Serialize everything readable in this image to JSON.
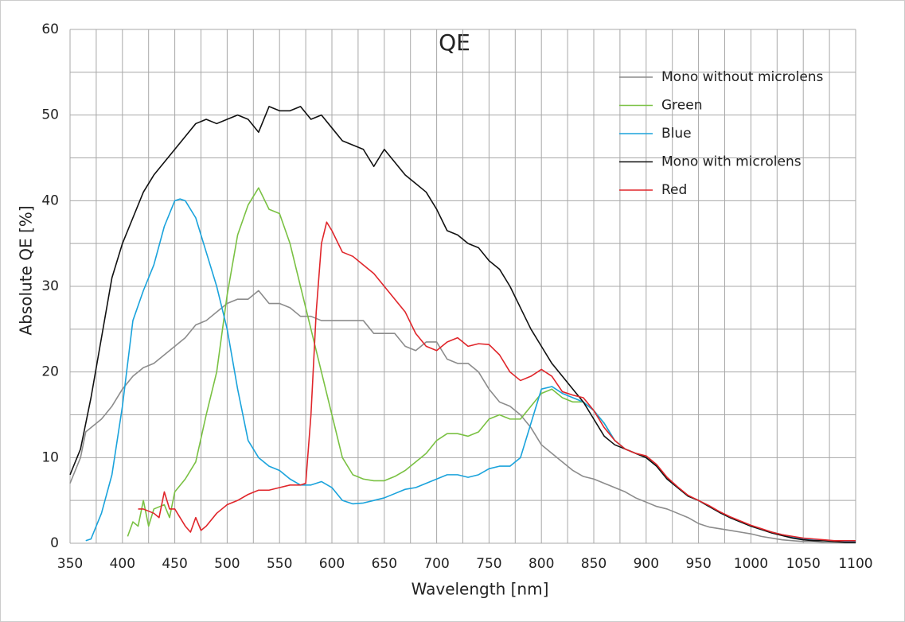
{
  "chart_data": {
    "type": "line",
    "title": "QE",
    "xlabel": "Wavelength [nm]",
    "ylabel": "Absolute QE [%]",
    "xlim": [
      350,
      1100
    ],
    "ylim": [
      0,
      60
    ],
    "xticks": [
      350,
      400,
      450,
      500,
      550,
      600,
      650,
      700,
      750,
      800,
      850,
      900,
      950,
      1000,
      1050,
      1100
    ],
    "yticks": [
      0,
      10,
      20,
      30,
      40,
      50,
      60
    ],
    "xminorticks": [
      375,
      425,
      475,
      525,
      575,
      625,
      675,
      725,
      775,
      825,
      875,
      925,
      975,
      1025,
      1075
    ],
    "yminorticks": [
      5,
      15,
      25,
      35,
      45,
      55
    ],
    "grid": true,
    "legend": "upper right",
    "series": [
      {
        "name": "Mono without microlens",
        "color": "#8c8c8c",
        "x": [
          350,
          360,
          365,
          370,
          380,
          390,
          400,
          410,
          420,
          430,
          440,
          450,
          460,
          470,
          480,
          490,
          500,
          510,
          520,
          530,
          540,
          550,
          560,
          570,
          580,
          590,
          600,
          610,
          620,
          630,
          640,
          650,
          660,
          670,
          680,
          690,
          700,
          710,
          720,
          730,
          740,
          750,
          760,
          770,
          780,
          790,
          800,
          810,
          820,
          830,
          840,
          850,
          860,
          870,
          880,
          890,
          900,
          910,
          920,
          930,
          940,
          950,
          960,
          970,
          980,
          990,
          1000,
          1010,
          1020,
          1030,
          1040,
          1050,
          1060,
          1070,
          1080,
          1090,
          1100
        ],
        "values": [
          7,
          10,
          13,
          13.5,
          14.5,
          16,
          18,
          19.5,
          20.5,
          21,
          22,
          23,
          24,
          25.5,
          26,
          27,
          28,
          28.5,
          28.5,
          29.5,
          28,
          28,
          27.5,
          26.5,
          26.5,
          26,
          26,
          26,
          26,
          26,
          24.5,
          24.5,
          24.5,
          23,
          22.5,
          23.5,
          23.5,
          21.5,
          21,
          21,
          20,
          18,
          16.5,
          16,
          15,
          13.5,
          11.5,
          10.5,
          9.5,
          8.5,
          7.8,
          7.5,
          7,
          6.5,
          6,
          5.3,
          4.8,
          4.3,
          4,
          3.5,
          3,
          2.3,
          1.9,
          1.7,
          1.5,
          1.3,
          1.1,
          0.8,
          0.6,
          0.4,
          0.3,
          0.2,
          0.2,
          0.1,
          0.1,
          0.1,
          0.1
        ]
      },
      {
        "name": "Green",
        "color": "#7ac143",
        "x": [
          405,
          410,
          415,
          420,
          425,
          430,
          440,
          445,
          450,
          460,
          470,
          480,
          490,
          500,
          510,
          520,
          530,
          540,
          550,
          560,
          570,
          580,
          590,
          600,
          610,
          620,
          630,
          640,
          650,
          660,
          670,
          680,
          690,
          700,
          710,
          720,
          730,
          740,
          750,
          760,
          770,
          780,
          790,
          800,
          810,
          820,
          830,
          840,
          850,
          860,
          870,
          880,
          890,
          900,
          910,
          920,
          930,
          940,
          950,
          960,
          970,
          980,
          990,
          1000,
          1010,
          1020,
          1030,
          1040,
          1050,
          1060,
          1070,
          1080,
          1090,
          1100
        ],
        "values": [
          0.8,
          2.5,
          2,
          5,
          2,
          4,
          4.5,
          3,
          6,
          7.5,
          9.5,
          15,
          20,
          29,
          36,
          39.5,
          41.5,
          39,
          38.5,
          35,
          30,
          25,
          20,
          15,
          10,
          8,
          7.5,
          7.3,
          7.3,
          7.8,
          8.5,
          9.5,
          10.5,
          12,
          12.8,
          12.8,
          12.5,
          13,
          14.5,
          15,
          14.5,
          14.5,
          16,
          17.5,
          18,
          17,
          16.5,
          16.5,
          15.5,
          14,
          12,
          11,
          10.5,
          10,
          9,
          7.5,
          6.5,
          5.5,
          5,
          4.3,
          3.6,
          3,
          2.5,
          2,
          1.6,
          1.3,
          1,
          0.7,
          0.5,
          0.4,
          0.3,
          0.3,
          0.2,
          0.2
        ]
      },
      {
        "name": "Blue",
        "color": "#1aa3dc",
        "x": [
          365,
          370,
          375,
          380,
          390,
          400,
          410,
          420,
          430,
          440,
          450,
          455,
          460,
          470,
          480,
          490,
          500,
          510,
          520,
          530,
          540,
          550,
          560,
          570,
          580,
          590,
          600,
          610,
          620,
          630,
          640,
          650,
          660,
          670,
          680,
          690,
          700,
          710,
          720,
          730,
          740,
          750,
          760,
          770,
          780,
          790,
          800,
          810,
          820,
          830,
          840,
          850,
          860,
          870,
          880,
          890,
          900,
          910,
          920,
          930,
          940,
          950,
          960,
          970,
          980,
          990,
          1000,
          1010,
          1020,
          1030,
          1040,
          1050,
          1060,
          1070,
          1080,
          1090,
          1100
        ],
        "values": [
          0.3,
          0.5,
          2,
          3.5,
          8,
          16,
          26,
          29.5,
          32.5,
          37,
          40,
          40.2,
          40,
          38,
          34,
          30,
          25,
          18,
          12,
          10,
          9,
          8.5,
          7.5,
          6.8,
          6.8,
          7.2,
          6.5,
          5,
          4.6,
          4.7,
          5,
          5.3,
          5.8,
          6.3,
          6.5,
          7,
          7.5,
          8,
          8,
          7.7,
          8,
          8.7,
          9,
          9,
          10,
          14,
          18,
          18.3,
          17.5,
          17,
          16.5,
          15.5,
          14,
          12,
          11,
          10.5,
          10,
          9,
          7.5,
          6.5,
          5.5,
          5,
          4.3,
          3.6,
          3,
          2.5,
          2,
          1.6,
          1.3,
          1,
          0.7,
          0.5,
          0.4,
          0.3,
          0.3,
          0.2,
          0.2
        ]
      },
      {
        "name": "Mono with microlens",
        "color": "#111111",
        "x": [
          350,
          360,
          370,
          380,
          390,
          400,
          410,
          420,
          430,
          440,
          450,
          460,
          470,
          480,
          490,
          500,
          510,
          520,
          530,
          540,
          550,
          560,
          570,
          580,
          590,
          600,
          610,
          620,
          630,
          640,
          650,
          660,
          670,
          680,
          690,
          700,
          710,
          720,
          730,
          740,
          750,
          760,
          770,
          780,
          790,
          800,
          810,
          820,
          830,
          840,
          850,
          860,
          870,
          880,
          890,
          900,
          910,
          920,
          930,
          940,
          950,
          960,
          970,
          980,
          990,
          1000,
          1010,
          1020,
          1030,
          1040,
          1050,
          1060,
          1070,
          1080,
          1090,
          1100
        ],
        "values": [
          8,
          11,
          17,
          24,
          31,
          35,
          38,
          41,
          43,
          44.5,
          46,
          47.5,
          49,
          49.5,
          49,
          49.5,
          50,
          49.5,
          48,
          51,
          50.5,
          50.5,
          51,
          49.5,
          50,
          48.5,
          47,
          46.5,
          46,
          44,
          46,
          44.5,
          43,
          42,
          41,
          39,
          36.5,
          36,
          35,
          34.5,
          33,
          32,
          30,
          27.5,
          25,
          23,
          21,
          19.5,
          18,
          16.5,
          14.5,
          12.5,
          11.5,
          11,
          10.5,
          10,
          9,
          7.5,
          6.5,
          5.5,
          5,
          4.3,
          3.6,
          3,
          2.5,
          2,
          1.6,
          1.2,
          0.9,
          0.6,
          0.4,
          0.3,
          0.3,
          0.2,
          0.1,
          0.1
        ]
      },
      {
        "name": "Red",
        "color": "#e0262b",
        "x": [
          415,
          420,
          430,
          435,
          440,
          445,
          450,
          455,
          460,
          465,
          470,
          475,
          480,
          490,
          500,
          510,
          520,
          530,
          540,
          550,
          560,
          570,
          575,
          580,
          585,
          590,
          595,
          600,
          610,
          620,
          630,
          640,
          650,
          660,
          670,
          680,
          690,
          700,
          710,
          720,
          730,
          740,
          750,
          760,
          770,
          780,
          790,
          800,
          810,
          820,
          830,
          840,
          850,
          860,
          870,
          880,
          890,
          900,
          910,
          920,
          930,
          940,
          950,
          960,
          970,
          980,
          990,
          1000,
          1010,
          1020,
          1030,
          1040,
          1050,
          1060,
          1070,
          1080,
          1090,
          1100
        ],
        "values": [
          4,
          4,
          3.5,
          3,
          6,
          4,
          4,
          3,
          2,
          1.3,
          3,
          1.5,
          2,
          3.5,
          4.5,
          5,
          5.7,
          6.2,
          6.2,
          6.5,
          6.8,
          6.8,
          7,
          15,
          27,
          35,
          37.5,
          36.5,
          34,
          33.5,
          32.5,
          31.5,
          30,
          28.5,
          27,
          24.5,
          23,
          22.5,
          23.5,
          24,
          23,
          23.3,
          23.2,
          22,
          20,
          19,
          19.5,
          20.3,
          19.5,
          17.7,
          17.3,
          17,
          15.5,
          13.5,
          12,
          11,
          10.5,
          10.2,
          9.2,
          7.7,
          6.6,
          5.6,
          5,
          4.4,
          3.7,
          3.1,
          2.6,
          2.1,
          1.7,
          1.3,
          1,
          0.8,
          0.6,
          0.5,
          0.4,
          0.3,
          0.3,
          0.3
        ]
      }
    ]
  }
}
